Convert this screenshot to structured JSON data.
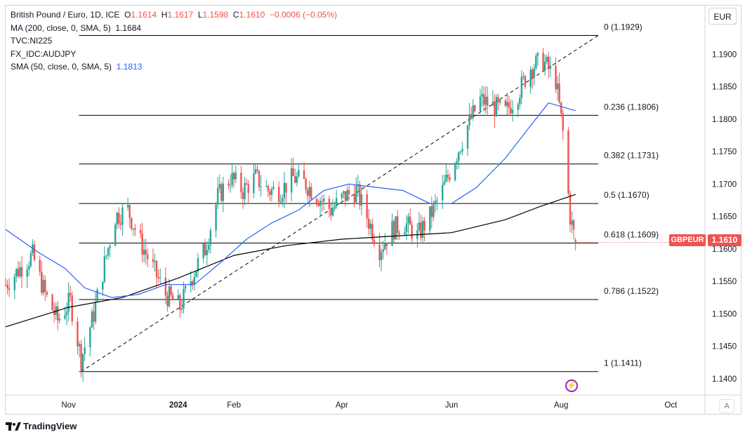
{
  "legend": {
    "line1_prefix": "British Pound / Euro, 1D, ICE",
    "o_label": "O",
    "o_value": "1.1614",
    "h_label": "H",
    "h_value": "1.1617",
    "l_label": "L",
    "l_value": "1.1598",
    "c_label": "C",
    "c_value": "1.1610",
    "change": "−0.0006 (−0.05%)",
    "ma200_label": "MA (200, close, 0, SMA, 5)",
    "ma200_value": "1.1684",
    "overlay1": "TVC:NI225",
    "overlay2": "FX_IDC:AUDJPY",
    "sma50_label": "SMA (50, close, 0, SMA, 5)",
    "sma50_value": "1.1813"
  },
  "currency": "EUR",
  "auto_label": "A",
  "price_tag": {
    "symbol": "GBPEUR",
    "value": "1.1610"
  },
  "brand": "TradingView",
  "colors": {
    "up": "#26a69a",
    "down": "#ef5350",
    "sma50": "#2962ff",
    "ma200": "#000000",
    "text": "#131722"
  },
  "chart_data": {
    "type": "candlestick",
    "symbol": "GBPEUR",
    "interval": "1D",
    "ylim": [
      1.1375,
      1.1975
    ],
    "y_ticks": [
      "1.1400",
      "1.1450",
      "1.1500",
      "1.1550",
      "1.1600",
      "1.1650",
      "1.1700",
      "1.1750",
      "1.1800",
      "1.1850",
      "1.1900",
      "1.1950"
    ],
    "x_ticks": [
      {
        "label": "Nov",
        "date": "2023-11-01"
      },
      {
        "label": "2024",
        "date": "2024-01-01"
      },
      {
        "label": "Feb",
        "date": "2024-02-01"
      },
      {
        "label": "Apr",
        "date": "2024-04-01"
      },
      {
        "label": "Jun",
        "date": "2024-06-01"
      },
      {
        "label": "Aug",
        "date": "2024-08-01"
      },
      {
        "label": "Oct",
        "date": "2024-10-01"
      }
    ],
    "xlim": [
      "2023-09-27",
      "2024-10-20"
    ],
    "fibonacci": [
      {
        "level": "0",
        "value": 1.1929,
        "label": "0 (1.1929)"
      },
      {
        "level": "0.236",
        "value": 1.1806,
        "label": "0.236 (1.1806)"
      },
      {
        "level": "0.382",
        "value": 1.1731,
        "label": "0.382 (1.1731)"
      },
      {
        "level": "0.5",
        "value": 1.167,
        "label": "0.5 (1.1670)"
      },
      {
        "level": "0.618",
        "value": 1.1609,
        "label": "0.618 (1.1609)"
      },
      {
        "level": "0.786",
        "value": 1.1522,
        "label": "0.786 (1.1522)"
      },
      {
        "level": "1",
        "value": 1.1411,
        "label": "1 (1.1411)"
      }
    ],
    "fib_range_dates": [
      "2023-11-08",
      "2024-08-07"
    ],
    "trendline": {
      "from": {
        "date": "2023-11-08",
        "value": 1.1411
      },
      "to": {
        "date": "2024-08-07",
        "value": 1.1929
      }
    },
    "close_path": [
      [
        "2023-09-27",
        1.1545
      ],
      [
        "2023-10-05",
        1.157
      ],
      [
        "2023-10-12",
        1.159
      ],
      [
        "2023-10-19",
        1.153
      ],
      [
        "2023-10-26",
        1.149
      ],
      [
        "2023-11-02",
        1.152
      ],
      [
        "2023-11-08",
        1.143
      ],
      [
        "2023-11-15",
        1.15
      ],
      [
        "2023-11-22",
        1.159
      ],
      [
        "2023-11-27",
        1.165
      ],
      [
        "2023-12-04",
        1.166
      ],
      [
        "2023-12-11",
        1.161
      ],
      [
        "2023-12-18",
        1.157
      ],
      [
        "2023-12-25",
        1.153
      ],
      [
        "2024-01-02",
        1.151
      ],
      [
        "2024-01-09",
        1.156
      ],
      [
        "2024-01-16",
        1.16
      ],
      [
        "2024-01-23",
        1.168
      ],
      [
        "2024-01-30",
        1.171
      ],
      [
        "2024-02-06",
        1.169
      ],
      [
        "2024-02-13",
        1.171
      ],
      [
        "2024-02-20",
        1.169
      ],
      [
        "2024-02-27",
        1.169
      ],
      [
        "2024-03-05",
        1.171
      ],
      [
        "2024-03-12",
        1.17
      ],
      [
        "2024-03-19",
        1.168
      ],
      [
        "2024-03-26",
        1.166
      ],
      [
        "2024-04-02",
        1.168
      ],
      [
        "2024-04-09",
        1.169
      ],
      [
        "2024-04-15",
        1.165
      ],
      [
        "2024-04-22",
        1.16
      ],
      [
        "2024-04-29",
        1.163
      ],
      [
        "2024-05-06",
        1.164
      ],
      [
        "2024-05-13",
        1.162
      ],
      [
        "2024-05-20",
        1.165
      ],
      [
        "2024-05-27",
        1.169
      ],
      [
        "2024-06-03",
        1.174
      ],
      [
        "2024-06-10",
        1.179
      ],
      [
        "2024-06-17",
        1.183
      ],
      [
        "2024-06-24",
        1.182
      ],
      [
        "2024-07-01",
        1.181
      ],
      [
        "2024-07-08",
        1.184
      ],
      [
        "2024-07-15",
        1.188
      ],
      [
        "2024-07-22",
        1.189
      ],
      [
        "2024-07-29",
        1.186
      ],
      [
        "2024-08-02",
        1.178
      ],
      [
        "2024-08-06",
        1.165
      ],
      [
        "2024-08-09",
        1.161
      ]
    ],
    "sma50": [
      [
        "2023-09-27",
        1.163
      ],
      [
        "2023-10-15",
        1.1595
      ],
      [
        "2023-10-30",
        1.157
      ],
      [
        "2023-11-10",
        1.154
      ],
      [
        "2023-11-25",
        1.1525
      ],
      [
        "2023-12-10",
        1.153
      ],
      [
        "2023-12-25",
        1.1545
      ],
      [
        "2024-01-10",
        1.1545
      ],
      [
        "2024-01-25",
        1.158
      ],
      [
        "2024-02-08",
        1.1615
      ],
      [
        "2024-02-22",
        1.164
      ],
      [
        "2024-03-08",
        1.166
      ],
      [
        "2024-03-22",
        1.169
      ],
      [
        "2024-04-05",
        1.17
      ],
      [
        "2024-04-20",
        1.1695
      ],
      [
        "2024-05-05",
        1.169
      ],
      [
        "2024-05-20",
        1.167
      ],
      [
        "2024-06-01",
        1.167
      ],
      [
        "2024-06-15",
        1.1695
      ],
      [
        "2024-07-01",
        1.174
      ],
      [
        "2024-07-15",
        1.179
      ],
      [
        "2024-07-25",
        1.1825
      ],
      [
        "2024-08-09",
        1.1813
      ]
    ],
    "ma200": [
      [
        "2023-09-27",
        1.148
      ],
      [
        "2023-11-01",
        1.151
      ],
      [
        "2023-12-01",
        1.1525
      ],
      [
        "2024-01-01",
        1.1555
      ],
      [
        "2024-02-01",
        1.159
      ],
      [
        "2024-03-01",
        1.1605
      ],
      [
        "2024-04-01",
        1.1615
      ],
      [
        "2024-05-01",
        1.162
      ],
      [
        "2024-06-01",
        1.1625
      ],
      [
        "2024-07-01",
        1.1645
      ],
      [
        "2024-07-20",
        1.1665
      ],
      [
        "2024-08-09",
        1.1684
      ]
    ],
    "last": {
      "date": "2024-08-09",
      "open": 1.1614,
      "high": 1.1617,
      "low": 1.1598,
      "close": 1.161
    }
  }
}
